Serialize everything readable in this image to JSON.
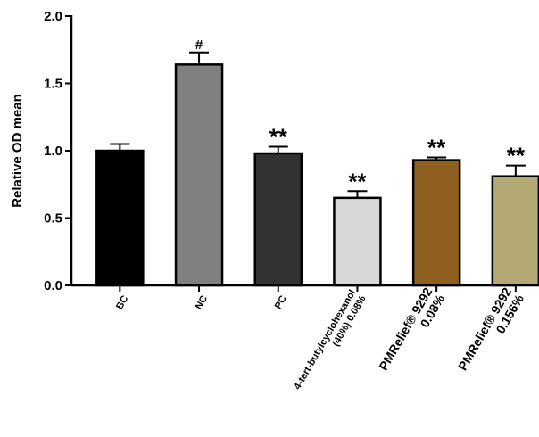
{
  "chart_data": {
    "type": "bar",
    "title": "",
    "xlabel": "",
    "ylabel": "Relative OD mean",
    "ylim": [
      0,
      2.0
    ],
    "yticks": [
      "0.0",
      "0.5",
      "1.0",
      "1.5",
      "2.0"
    ],
    "grid": false,
    "categories": [
      [
        "BC"
      ],
      [
        "NC"
      ],
      [
        "PC"
      ],
      [
        "4-tert-butylcyclohexanol",
        "(40%) 0.08%"
      ],
      [
        "PMRelief® 9292",
        "0.08%"
      ],
      [
        "PMRelief® 9292",
        "0.156%"
      ]
    ],
    "values": [
      1.0,
      1.64,
      0.98,
      0.65,
      0.93,
      0.81
    ],
    "errors": [
      0.05,
      0.09,
      0.05,
      0.05,
      0.02,
      0.08
    ],
    "significance": [
      "",
      "#",
      "**",
      "**",
      "**",
      "**"
    ],
    "colors": [
      "#000000",
      "#808080",
      "#333333",
      "#d8d8d8",
      "#8f5f1f",
      "#b4a875"
    ]
  }
}
